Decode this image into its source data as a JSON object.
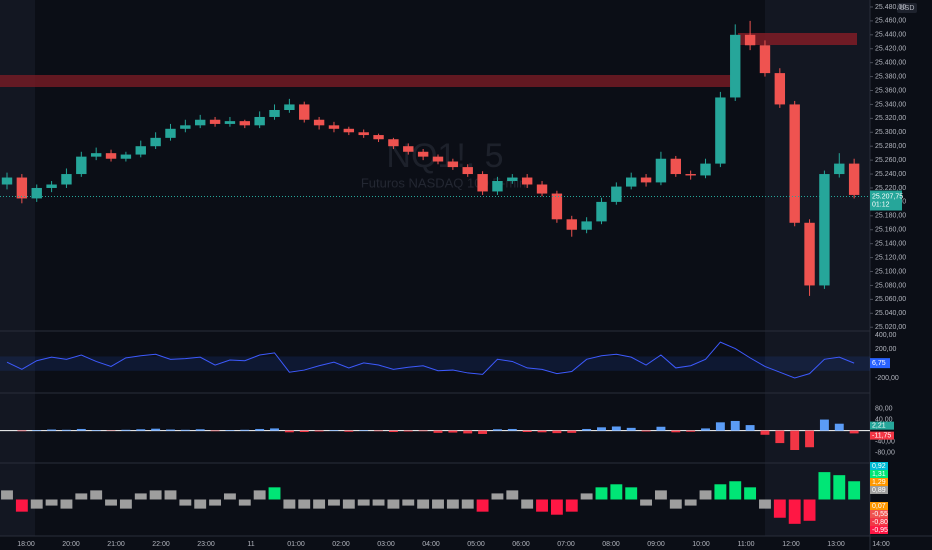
{
  "chart_data": {
    "type": "candlestick",
    "title": "NQ1!, 5",
    "subtitle": "Futuros NASDAQ 100 E-mini",
    "currency": "USD",
    "up_color": "#26a69a",
    "down_color": "#ef5350",
    "categories": [
      "18:00",
      "20:00",
      "21:00",
      "22:00",
      "23:00",
      "11",
      "01:00",
      "02:00",
      "03:00",
      "04:00",
      "05:00",
      "06:00",
      "07:00",
      "08:00",
      "09:00",
      "10:00",
      "11:00",
      "12:00",
      "13:00",
      "14:00"
    ],
    "candles": {
      "open": [
        25225,
        25235,
        25205,
        25220,
        25225,
        25240,
        25265,
        25270,
        25262,
        25268,
        25280,
        25292,
        25305,
        25310,
        25318,
        25312,
        25316,
        25310,
        25322,
        25332,
        25340,
        25318,
        25310,
        25305,
        25300,
        25296,
        25290,
        25280,
        25272,
        25265,
        25258,
        25250,
        25240,
        25215,
        25230,
        25235,
        25225,
        25212,
        25175,
        25160,
        25172,
        25200,
        25222,
        25235,
        25228,
        25262,
        25240,
        25238,
        25255,
        25350,
        25440,
        25425,
        25385,
        25340,
        25170,
        25080,
        25240,
        25255
      ],
      "high": [
        25242,
        25240,
        25225,
        25230,
        25248,
        25272,
        25278,
        25275,
        25272,
        25288,
        25300,
        25312,
        25318,
        25325,
        25322,
        25322,
        25318,
        25330,
        25340,
        25348,
        25344,
        25322,
        25315,
        25308,
        25304,
        25298,
        25292,
        25284,
        25276,
        25268,
        25262,
        25254,
        25244,
        25236,
        25240,
        25240,
        25230,
        25216,
        25180,
        25178,
        25206,
        25228,
        25242,
        25240,
        25272,
        25266,
        25245,
        25262,
        25358,
        25455,
        25460,
        25432,
        25392,
        25345,
        25175,
        25245,
        25270,
        25262
      ],
      "low": [
        25218,
        25198,
        25200,
        25214,
        25220,
        25236,
        25260,
        25258,
        25258,
        25264,
        25276,
        25288,
        25300,
        25306,
        25308,
        25308,
        25306,
        25306,
        25318,
        25328,
        25314,
        25304,
        25300,
        25296,
        25292,
        25286,
        25276,
        25268,
        25260,
        25254,
        25246,
        25236,
        25210,
        25210,
        25226,
        25220,
        25208,
        25170,
        25150,
        25155,
        25168,
        25196,
        25218,
        25222,
        25224,
        25236,
        25232,
        25234,
        25250,
        25345,
        25418,
        25380,
        25335,
        25165,
        25065,
        25075,
        25235,
        25205
      ],
      "close": [
        25235,
        25205,
        25220,
        25225,
        25240,
        25265,
        25270,
        25262,
        25268,
        25280,
        25292,
        25305,
        25310,
        25318,
        25312,
        25316,
        25310,
        25322,
        25332,
        25340,
        25318,
        25310,
        25305,
        25300,
        25296,
        25290,
        25280,
        25272,
        25265,
        25258,
        25250,
        25240,
        25215,
        25230,
        25235,
        25225,
        25212,
        25175,
        25160,
        25172,
        25200,
        25222,
        25235,
        25228,
        25262,
        25240,
        25238,
        25255,
        25350,
        25440,
        25425,
        25385,
        25340,
        25170,
        25080,
        25240,
        25255,
        25210
      ]
    },
    "ylim": [
      25016,
      25490
    ],
    "yticks": [
      {
        "value": 25480,
        "label": "25.480,00"
      },
      {
        "value": 25460,
        "label": "25.460,00"
      },
      {
        "value": 25440,
        "label": "25.440,00"
      },
      {
        "value": 25420,
        "label": "25.420,00"
      },
      {
        "value": 25400,
        "label": "25.400,00"
      },
      {
        "value": 25380,
        "label": "25.380,00"
      },
      {
        "value": 25360,
        "label": "25.360,00"
      },
      {
        "value": 25340,
        "label": "25.340,00"
      },
      {
        "value": 25320,
        "label": "25.320,00"
      },
      {
        "value": 25300,
        "label": "25.300,00"
      },
      {
        "value": 25280,
        "label": "25.280,00"
      },
      {
        "value": 25260,
        "label": "25.260,00"
      },
      {
        "value": 25240,
        "label": "25.240,00"
      },
      {
        "value": 25220,
        "label": "25.220,00"
      },
      {
        "value": 25200,
        "label": "25.200,00"
      },
      {
        "value": 25180,
        "label": "25.180,00"
      },
      {
        "value": 25160,
        "label": "25.160,00"
      },
      {
        "value": 25140,
        "label": "25.140,00"
      },
      {
        "value": 25120,
        "label": "25.120,00"
      },
      {
        "value": 25100,
        "label": "25.100,00"
      },
      {
        "value": 25080,
        "label": "25.080,00"
      },
      {
        "value": 25060,
        "label": "25.060,00"
      },
      {
        "value": 25040,
        "label": "25.040,00"
      },
      {
        "value": 25020,
        "label": "25.020,00"
      }
    ],
    "last_price": {
      "value": 25207.75,
      "label": "25.207,75",
      "countdown": "01:12"
    },
    "oscillator": {
      "color": "#3d5afe",
      "values": [
        20,
        -80,
        40,
        90,
        60,
        120,
        30,
        -40,
        80,
        110,
        130,
        60,
        70,
        90,
        -20,
        50,
        40,
        120,
        150,
        -120,
        -90,
        -30,
        20,
        -60,
        10,
        -20,
        -80,
        -50,
        -30,
        -100,
        -90,
        -130,
        -150,
        60,
        30,
        -60,
        -80,
        -140,
        -110,
        60,
        110,
        130,
        90,
        -20,
        120,
        -60,
        -30,
        60,
        300,
        210,
        80,
        -40,
        -120,
        -200,
        -140,
        60,
        90,
        7
      ],
      "ylim": [
        -410,
        455
      ],
      "yticks": [
        {
          "value": 400,
          "label": "400,00"
        },
        {
          "value": 200,
          "label": "200,00"
        },
        {
          "value": -200,
          "label": "-200,00"
        }
      ],
      "last": {
        "value": 6.75,
        "label": "6,75"
      }
    },
    "momentum": {
      "up_color": "#5b9cf6",
      "down_color": "#f23645",
      "values": [
        0,
        -2,
        2,
        4,
        3,
        6,
        2,
        -1,
        3,
        5,
        7,
        4,
        3,
        5,
        -2,
        2,
        3,
        6,
        8,
        -6,
        -5,
        -3,
        2,
        -4,
        2,
        -2,
        -5,
        -3,
        -2,
        -8,
        -7,
        -10,
        -12,
        5,
        6,
        -5,
        -6,
        -9,
        -8,
        6,
        12,
        15,
        10,
        -3,
        14,
        -6,
        -4,
        8,
        30,
        35,
        20,
        -15,
        -45,
        -70,
        -60,
        40,
        25,
        -10
      ],
      "ylim": [
        -117,
        136
      ],
      "yticks": [
        {
          "value": 80,
          "label": "80,00"
        },
        {
          "value": 40,
          "label": "40,00"
        },
        {
          "value": -40,
          "label": "-40,00"
        },
        {
          "value": -80,
          "label": "-80,00"
        }
      ],
      "last": [
        {
          "value": 2.21,
          "label": "2,21",
          "color": "#26a69a"
        },
        {
          "value": -11.75,
          "label": "-11,75",
          "color": "#f23645"
        }
      ]
    },
    "strength": {
      "up_color": "#00e676",
      "down_color": "#ff1744",
      "neutral_color": "#9e9e9e",
      "values": [
        0.3,
        -0.4,
        -0.3,
        -0.2,
        -0.3,
        0.2,
        0.3,
        -0.2,
        -0.3,
        0.2,
        0.3,
        0.3,
        -0.2,
        -0.3,
        -0.2,
        0.2,
        -0.2,
        0.3,
        0.4,
        -0.3,
        -0.3,
        -0.3,
        -0.2,
        -0.3,
        -0.2,
        -0.2,
        -0.3,
        -0.2,
        -0.3,
        -0.3,
        -0.3,
        -0.3,
        -0.4,
        0.2,
        0.3,
        -0.3,
        -0.4,
        -0.5,
        -0.4,
        0.2,
        0.4,
        0.5,
        0.4,
        -0.2,
        0.3,
        -0.3,
        -0.2,
        0.3,
        0.5,
        0.6,
        0.4,
        -0.3,
        -0.6,
        -0.8,
        -0.7,
        0.9,
        0.8,
        0.6
      ],
      "ylim": [
        -1.2,
        1.2
      ],
      "labels": [
        {
          "value": 0.92,
          "label": "0,92",
          "color": "#00bcd4"
        },
        {
          "value": 1.31,
          "label": "1,31",
          "color": "#00e676"
        },
        {
          "value": 1.29,
          "label": "1,29",
          "color": "#ff9800"
        },
        {
          "value": 0.89,
          "label": "0,89",
          "color": "#9e9e9e"
        },
        {
          "value": 0.07,
          "label": "0,07",
          "color": "#ff9800"
        },
        {
          "value": -0.55,
          "label": "-0,55",
          "color": "#ef5350"
        },
        {
          "value": -0.8,
          "label": "-0,80",
          "color": "#f23645"
        },
        {
          "value": -0.95,
          "label": "-0,95",
          "color": "#ff1744"
        }
      ]
    }
  }
}
